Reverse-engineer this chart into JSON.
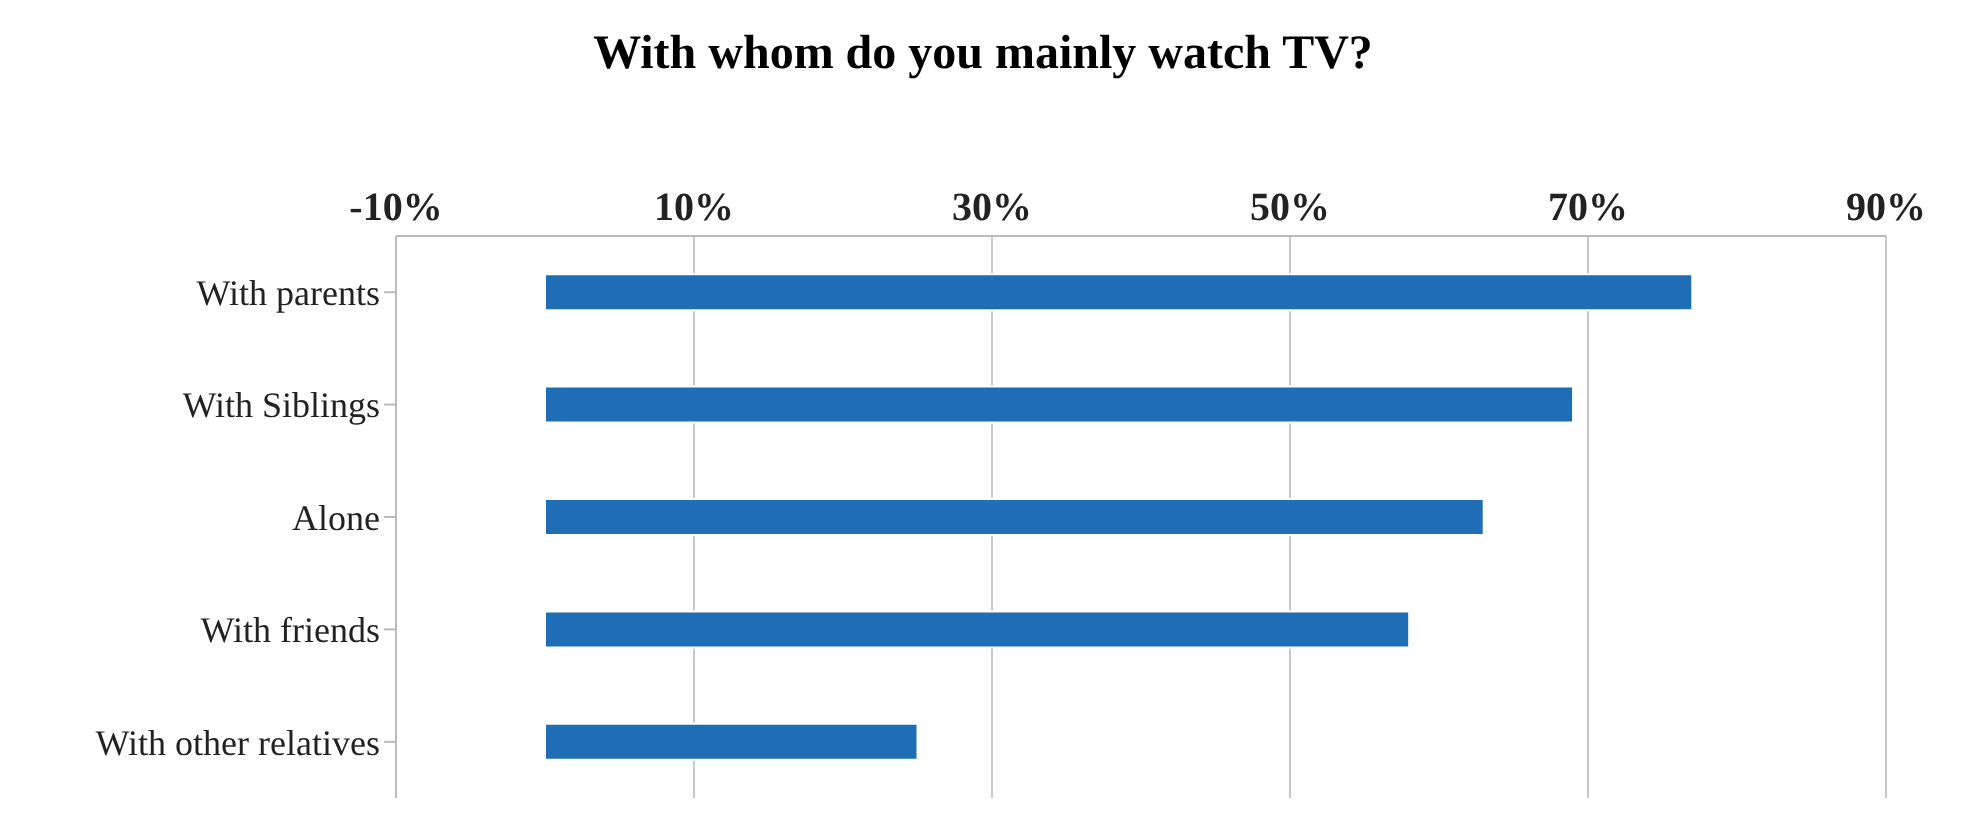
{
  "chart_data": {
    "type": "bar",
    "orientation": "horizontal",
    "title": "With whom do you mainly watch TV?",
    "categories": [
      "With parents",
      "With Siblings",
      "Alone",
      "With friends",
      "With other relatives"
    ],
    "values": [
      77,
      69,
      63,
      58,
      25
    ],
    "color": "#1f6db5",
    "xlim": [
      -10,
      90
    ],
    "xticks": [
      {
        "value": -10,
        "label": "-10%"
      },
      {
        "value": 10,
        "label": "10%"
      },
      {
        "value": 30,
        "label": "30%"
      },
      {
        "value": 50,
        "label": "50%"
      },
      {
        "value": 70,
        "label": "70%"
      },
      {
        "value": 90,
        "label": "90%"
      }
    ],
    "grid": "x",
    "legend": false
  }
}
